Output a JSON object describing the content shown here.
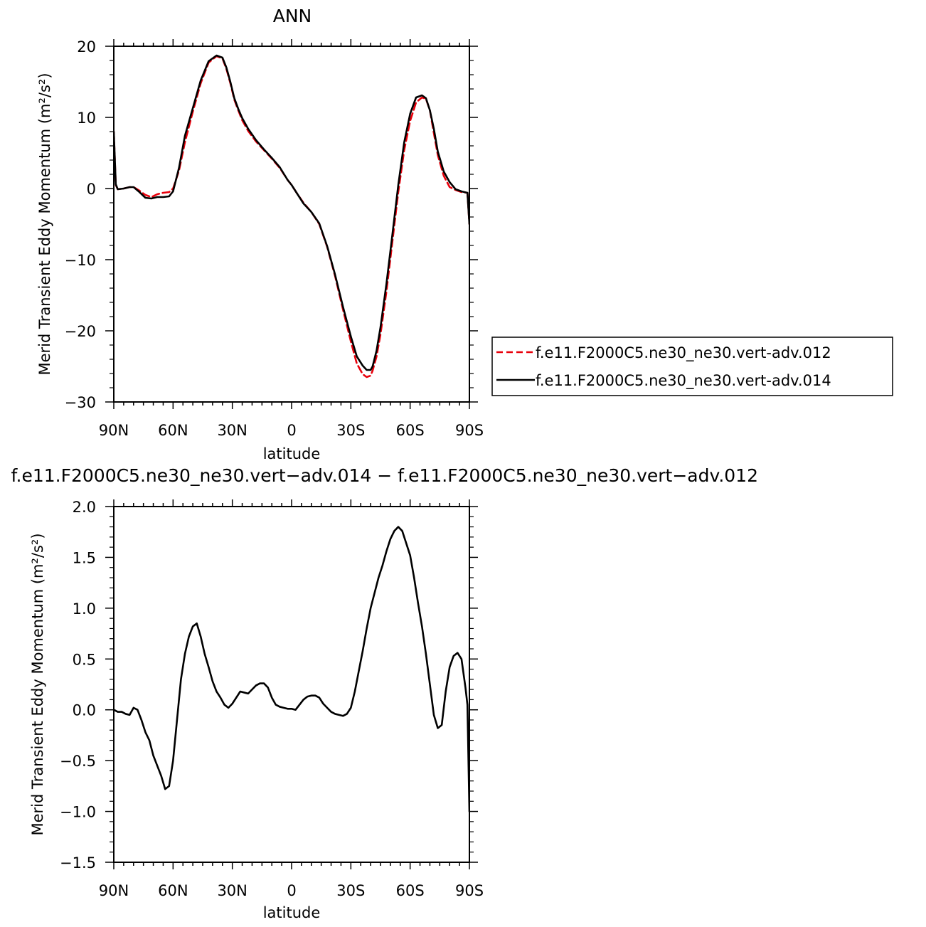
{
  "chart_data": [
    {
      "type": "line",
      "title": "ANN",
      "xlabel": "latitude",
      "ylabel": "Merid Transient Eddy Momentum (m²/s²)",
      "xlim": [
        90,
        -90
      ],
      "ylim": [
        -30,
        20
      ],
      "x_tick_values": [
        90,
        60,
        30,
        0,
        -30,
        -60,
        -90
      ],
      "x_tick_labels": [
        "90N",
        "60N",
        "30N",
        "0",
        "30S",
        "60S",
        "90S"
      ],
      "y_ticks": [
        -30,
        -20,
        -10,
        0,
        10,
        20
      ],
      "y_tick_labels": [
        "−30",
        "−20",
        "−10",
        "0",
        "10",
        "20"
      ],
      "legend_position": "right",
      "series": [
        {
          "name": "f.e11.F2000C5.ne30_ne30.vert-adv.012",
          "color": "#e8000b",
          "dash": "dashed",
          "x": [
            90,
            89,
            88,
            85,
            82,
            80,
            77,
            74,
            71,
            68,
            65,
            62,
            60,
            57,
            54,
            50,
            46,
            42,
            38,
            35,
            33,
            31,
            29,
            27,
            25,
            22,
            18,
            14,
            10,
            6,
            2,
            0,
            -3,
            -6,
            -10,
            -14,
            -18,
            -22,
            -26,
            -30,
            -33,
            -36,
            -38,
            -40,
            -41,
            -43,
            -45,
            -48,
            -51,
            -54,
            -57,
            -60,
            -63,
            -66,
            -68,
            -70,
            -72,
            -74,
            -77,
            -80,
            -83,
            -86,
            -89,
            -90
          ],
          "y": [
            8.0,
            0.5,
            -0.1,
            0.0,
            0.2,
            0.2,
            -0.3,
            -0.9,
            -1.2,
            -0.8,
            -0.6,
            -0.5,
            0.0,
            2.5,
            6.5,
            10.8,
            14.8,
            17.7,
            18.6,
            18.3,
            16.8,
            14.8,
            12.5,
            11.0,
            9.6,
            8.1,
            6.6,
            5.4,
            4.2,
            2.9,
            1.2,
            0.5,
            -0.8,
            -2.0,
            -3.3,
            -5.0,
            -8.2,
            -12.3,
            -17.0,
            -21.5,
            -24.6,
            -26.1,
            -26.5,
            -26.3,
            -25.6,
            -23.6,
            -20.5,
            -14.5,
            -7.5,
            -0.5,
            5.4,
            9.5,
            12.1,
            12.8,
            12.6,
            11.0,
            7.8,
            4.7,
            1.8,
            0.2,
            -0.2,
            -0.5,
            -0.6,
            -5.0
          ]
        },
        {
          "name": "f.e11.F2000C5.ne30_ne30.vert-adv.014",
          "color": "#000000",
          "dash": "solid",
          "x": [
            90,
            89,
            88,
            85,
            82,
            80,
            77,
            74,
            71,
            68,
            65,
            62,
            60,
            57,
            54,
            50,
            46,
            42,
            38,
            35,
            33,
            31,
            29,
            27,
            25,
            22,
            18,
            14,
            10,
            6,
            2,
            0,
            -3,
            -6,
            -10,
            -14,
            -18,
            -22,
            -26,
            -30,
            -33,
            -36,
            -38,
            -40,
            -41,
            -43,
            -45,
            -48,
            -51,
            -54,
            -57,
            -60,
            -63,
            -66,
            -68,
            -70,
            -72,
            -74,
            -77,
            -80,
            -83,
            -86,
            -89,
            -90
          ],
          "y": [
            8.0,
            0.6,
            -0.1,
            0.0,
            0.2,
            0.2,
            -0.5,
            -1.3,
            -1.4,
            -1.2,
            -1.2,
            -1.1,
            -0.4,
            2.9,
            7.4,
            11.3,
            15.2,
            17.9,
            18.7,
            18.4,
            17.0,
            15.0,
            12.7,
            11.2,
            9.9,
            8.4,
            6.8,
            5.5,
            4.3,
            3.0,
            1.2,
            0.5,
            -0.8,
            -2.1,
            -3.3,
            -4.9,
            -8.1,
            -12.1,
            -16.6,
            -20.8,
            -23.6,
            -24.9,
            -25.5,
            -25.5,
            -25.0,
            -22.8,
            -19.5,
            -13.4,
            -6.5,
            0.5,
            6.5,
            10.5,
            12.8,
            13.1,
            12.7,
            11.0,
            8.4,
            5.2,
            2.4,
            0.9,
            -0.1,
            -0.4,
            -0.6,
            -5.0
          ]
        }
      ]
    },
    {
      "type": "line",
      "title": "f.e11.F2000C5.ne30_ne30.vert−adv.014 − f.e11.F2000C5.ne30_ne30.vert−adv.012",
      "xlabel": "latitude",
      "ylabel": "Merid Transient Eddy Momentum (m²/s²)",
      "xlim": [
        90,
        -90
      ],
      "ylim": [
        -1.5,
        2.0
      ],
      "x_tick_values": [
        90,
        60,
        30,
        0,
        -30,
        -60,
        -90
      ],
      "x_tick_labels": [
        "90N",
        "60N",
        "30N",
        "0",
        "30S",
        "60S",
        "90S"
      ],
      "y_ticks": [
        -1.5,
        -1.0,
        -0.5,
        0.0,
        0.5,
        1.0,
        1.5,
        2.0
      ],
      "y_tick_labels": [
        "−1.5",
        "−1.0",
        "−0.5",
        "0.0",
        "0.5",
        "1.0",
        "1.5",
        "2.0"
      ],
      "series": [
        {
          "color": "#000000",
          "dash": "solid",
          "x": [
            90,
            88,
            86,
            84,
            82,
            80,
            78,
            76,
            74,
            72,
            70,
            68,
            66,
            64,
            62,
            60,
            58,
            56,
            54,
            52,
            50,
            48,
            46,
            44,
            42,
            40,
            38,
            36,
            34,
            32,
            30,
            28,
            26,
            24,
            22,
            20,
            18,
            16,
            14,
            12,
            10,
            8,
            6,
            4,
            2,
            0,
            -2,
            -4,
            -6,
            -8,
            -10,
            -12,
            -14,
            -16,
            -18,
            -20,
            -22,
            -24,
            -26,
            -28,
            -30,
            -32,
            -34,
            -36,
            -38,
            -40,
            -42,
            -44,
            -46,
            -48,
            -50,
            -52,
            -54,
            -56,
            -58,
            -60,
            -62,
            -64,
            -66,
            -68,
            -70,
            -72,
            -74,
            -76,
            -78,
            -80,
            -82,
            -84,
            -86,
            -88,
            -89,
            -90
          ],
          "y": [
            0.0,
            -0.02,
            -0.02,
            -0.04,
            -0.05,
            0.02,
            0.0,
            -0.1,
            -0.22,
            -0.3,
            -0.45,
            -0.55,
            -0.65,
            -0.78,
            -0.75,
            -0.5,
            -0.1,
            0.3,
            0.55,
            0.72,
            0.82,
            0.85,
            0.72,
            0.55,
            0.42,
            0.28,
            0.18,
            0.12,
            0.05,
            0.02,
            0.06,
            0.12,
            0.18,
            0.17,
            0.16,
            0.2,
            0.24,
            0.26,
            0.26,
            0.22,
            0.12,
            0.05,
            0.03,
            0.02,
            0.01,
            0.01,
            0.0,
            0.05,
            0.1,
            0.13,
            0.14,
            0.14,
            0.12,
            0.06,
            0.02,
            -0.02,
            -0.04,
            -0.05,
            -0.06,
            -0.04,
            0.02,
            0.18,
            0.38,
            0.58,
            0.8,
            1.0,
            1.15,
            1.3,
            1.42,
            1.56,
            1.68,
            1.76,
            1.8,
            1.76,
            1.64,
            1.52,
            1.3,
            1.05,
            0.82,
            0.55,
            0.25,
            -0.05,
            -0.18,
            -0.15,
            0.18,
            0.42,
            0.53,
            0.56,
            0.5,
            0.22,
            0.05,
            -1.0
          ]
        }
      ]
    }
  ]
}
